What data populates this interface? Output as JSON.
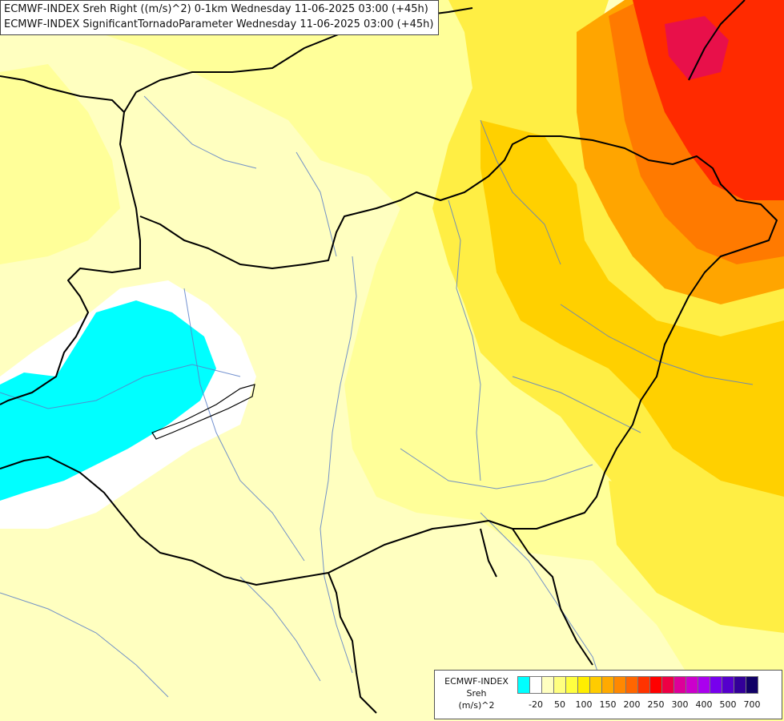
{
  "title": {
    "line1": "ECMWF-INDEX Sreh Right ((m/s)^2) 0-1km Wednesday 11-06-2025 03:00 (+45h)",
    "line2": "ECMWF-INDEX SignificantTornadoParameter Wednesday 11-06-2025 03:00 (+45h)"
  },
  "legend": {
    "line1": "ECMWF-INDEX",
    "line2": "Sreh",
    "line3": "(m/s)^2",
    "colors": [
      "#00ffff",
      "#ffffff",
      "#ffffc0",
      "#ffff80",
      "#ffff40",
      "#ffee00",
      "#ffcc00",
      "#ffaa00",
      "#ff8800",
      "#ff6600",
      "#ff3300",
      "#ff0000",
      "#ee0044",
      "#dd0099",
      "#cc00cc",
      "#aa00ee",
      "#7700ee",
      "#5500cc",
      "#330099",
      "#110066"
    ],
    "ticks": [
      "-20",
      "50",
      "100",
      "150",
      "200",
      "250",
      "300",
      "400",
      "500",
      "700"
    ]
  },
  "field": {
    "cyan": "#00ffff",
    "white": "#ffffff",
    "pale": "#ffffc0",
    "light": "#ffff99",
    "yellow": "#ffee44",
    "gold": "#ffd000",
    "orange": "#ffa500",
    "darkorange": "#ff7a00",
    "red": "#ff2a00",
    "crimson": "#e8104a"
  }
}
